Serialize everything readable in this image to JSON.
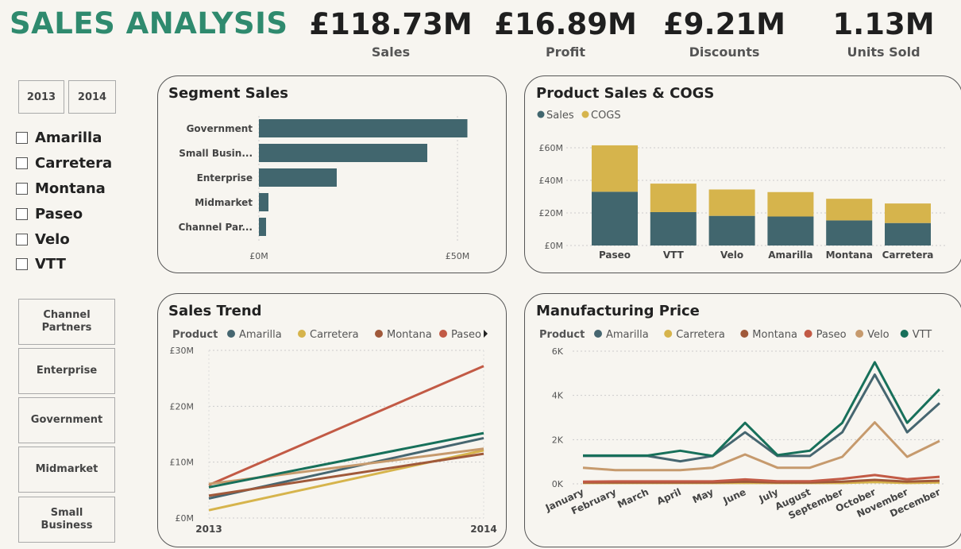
{
  "header": {
    "title": "SALES ANALYSIS",
    "kpis": [
      {
        "value": "£118.73M",
        "label": "Sales"
      },
      {
        "value": "£16.89M",
        "label": "Profit"
      },
      {
        "value": "£9.21M",
        "label": "Discounts"
      },
      {
        "value": "1.13M",
        "label": "Units Sold"
      }
    ]
  },
  "filters": {
    "years": [
      "2013",
      "2014"
    ],
    "products": [
      "Amarilla",
      "Carretera",
      "Montana",
      "Paseo",
      "Velo",
      "VTT"
    ],
    "segments": [
      "Channel Partners",
      "Enterprise",
      "Government",
      "Midmarket",
      "Small Business"
    ]
  },
  "colors": {
    "Amarilla": "#466670",
    "Carretera": "#d6b44c",
    "Montana": "#a0593a",
    "Paseo": "#c25a45",
    "Velo": "#c69a6d",
    "VTT": "#17705a",
    "Sales": "#41666e",
    "COGS": "#d6b44c"
  },
  "chart_data": [
    {
      "type": "bar",
      "title": "Segment Sales",
      "orientation": "horizontal",
      "categories": [
        "Government",
        "Small Busin...",
        "Enterprise",
        "Midmarket",
        "Channel Par..."
      ],
      "values": [
        52.5,
        42.4,
        19.6,
        2.4,
        1.8
      ],
      "xlim": [
        0,
        60
      ],
      "xticks": [
        "£0M",
        "£50M"
      ]
    },
    {
      "type": "bar",
      "stacked": true,
      "title": "Product Sales & COGS",
      "categories": [
        "Paseo",
        "VTT",
        "Velo",
        "Amarilla",
        "Montana",
        "Carretera"
      ],
      "series": [
        {
          "name": "Sales",
          "values": [
            33.0,
            20.5,
            18.2,
            17.8,
            15.4,
            13.8
          ]
        },
        {
          "name": "COGS",
          "values": [
            28.5,
            17.5,
            16.2,
            15.0,
            13.3,
            12.0
          ]
        }
      ],
      "ylim": [
        0,
        65
      ],
      "yticks": [
        "£0M",
        "£20M",
        "£40M",
        "£60M"
      ],
      "legend": "top-left"
    },
    {
      "type": "line",
      "title": "Sales Trend",
      "legend_title": "Product",
      "x": [
        "2013",
        "2014"
      ],
      "series": [
        {
          "name": "Amarilla",
          "values": [
            3.5,
            14.3
          ]
        },
        {
          "name": "Carretera",
          "values": [
            1.4,
            12.1
          ]
        },
        {
          "name": "Montana",
          "values": [
            4.0,
            11.5
          ]
        },
        {
          "name": "Paseo",
          "values": [
            5.9,
            27.2
          ]
        },
        {
          "name": "Velo",
          "values": [
            6.1,
            12.4
          ]
        },
        {
          "name": "VTT",
          "values": [
            5.5,
            15.2
          ]
        }
      ],
      "legend_visible": [
        "Amarilla",
        "Carretera",
        "Montana",
        "Paseo"
      ],
      "ylim": [
        0,
        30
      ],
      "yticks": [
        "£0M",
        "£10M",
        "£20M",
        "£30M"
      ]
    },
    {
      "type": "line",
      "title": "Manufacturing Price",
      "legend_title": "Product",
      "x": [
        "January",
        "February",
        "March",
        "April",
        "May",
        "June",
        "July",
        "August",
        "September",
        "October",
        "November",
        "December"
      ],
      "series": [
        {
          "name": "Amarilla",
          "values": [
            1260,
            1260,
            1260,
            1020,
            1260,
            2330,
            1260,
            1260,
            2330,
            4940,
            2330,
            3650
          ]
        },
        {
          "name": "Carretera",
          "values": [
            40,
            40,
            40,
            40,
            40,
            40,
            40,
            40,
            40,
            80,
            40,
            60
          ]
        },
        {
          "name": "Montana",
          "values": [
            60,
            60,
            60,
            60,
            60,
            100,
            60,
            60,
            100,
            180,
            100,
            140
          ]
        },
        {
          "name": "Paseo",
          "values": [
            100,
            110,
            110,
            110,
            110,
            200,
            120,
            120,
            230,
            400,
            210,
            320
          ]
        },
        {
          "name": "Velo",
          "values": [
            730,
            620,
            620,
            620,
            730,
            1330,
            730,
            730,
            1220,
            2780,
            1220,
            1940
          ]
        },
        {
          "name": "VTT",
          "values": [
            1280,
            1280,
            1280,
            1500,
            1260,
            2760,
            1300,
            1500,
            2760,
            5500,
            2760,
            4280
          ]
        }
      ],
      "ylim": [
        0,
        6000
      ],
      "yticks": [
        "0K",
        "2K",
        "4K",
        "6K"
      ]
    }
  ]
}
